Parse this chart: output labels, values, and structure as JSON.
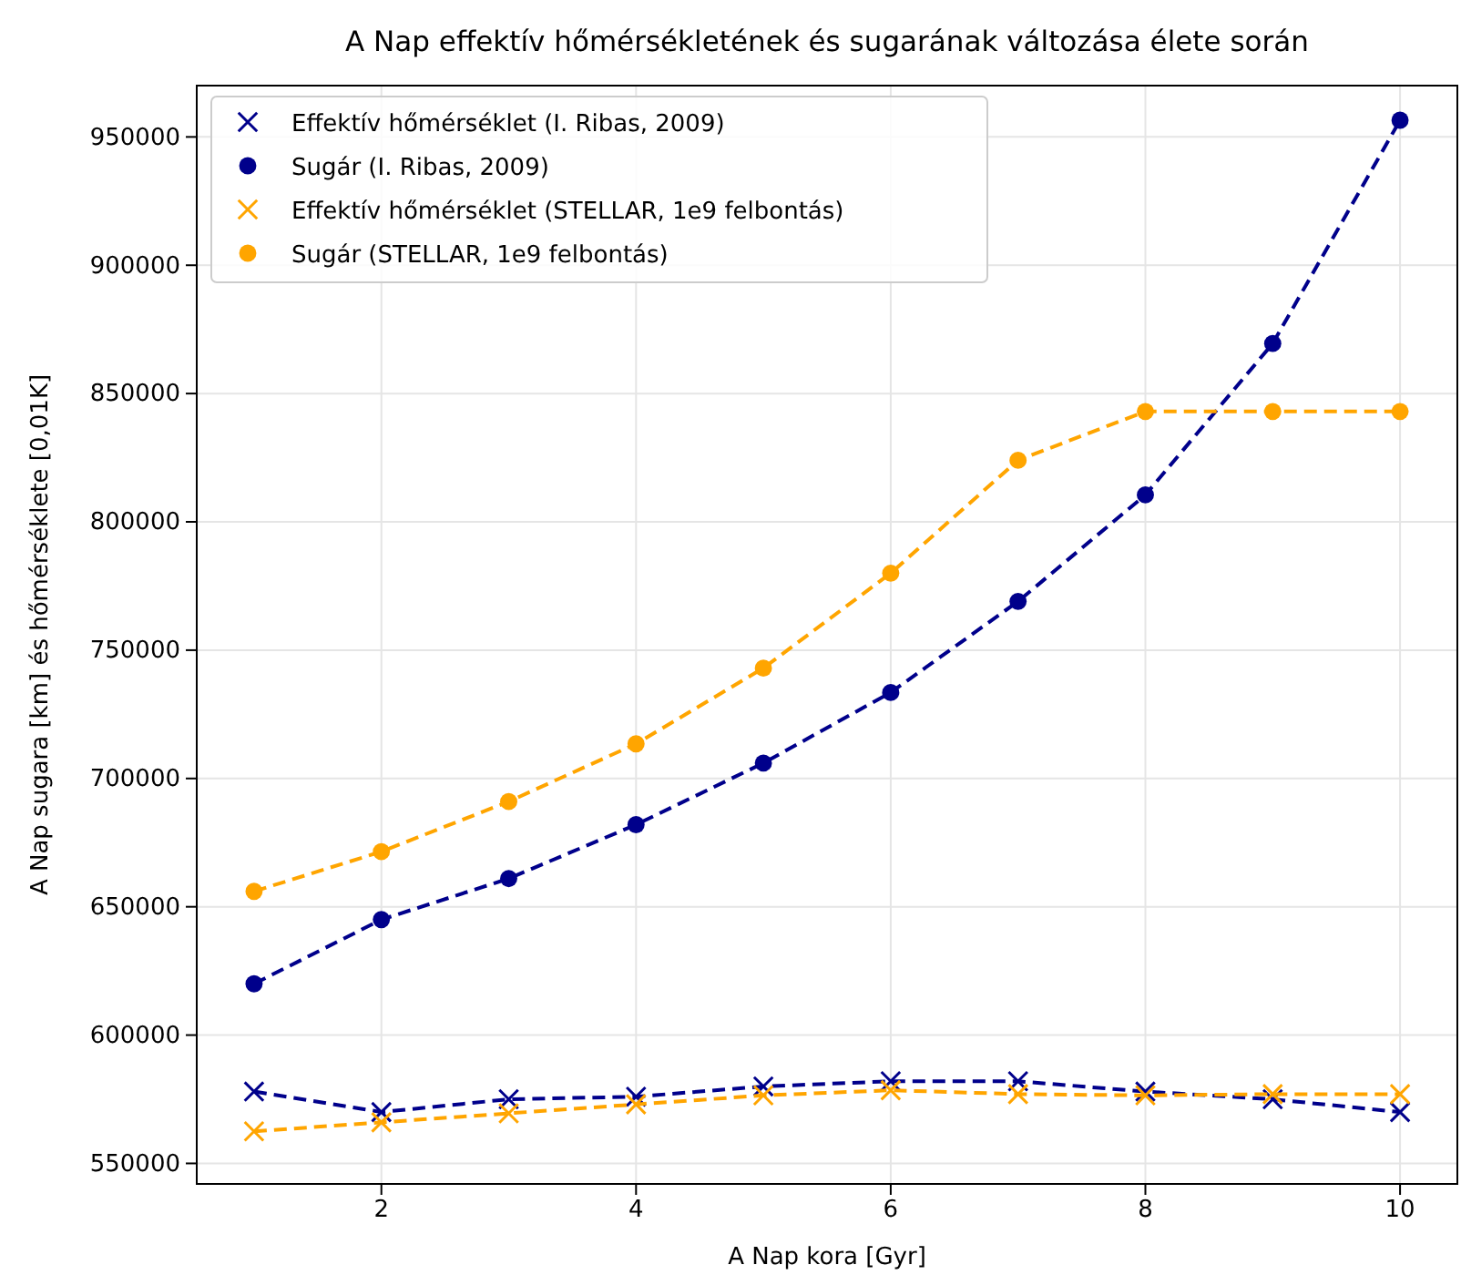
{
  "chart_data": {
    "type": "line",
    "title": "A Nap effektív hőmérsékletének és sugarának változása élete során",
    "xlabel": "A Nap kora [Gyr]",
    "ylabel": "A Nap sugara [km] és hőmérséklete [0,01K]",
    "x": [
      1,
      2,
      3,
      4,
      5,
      6,
      7,
      8,
      9,
      10
    ],
    "series": [
      {
        "name": "Effektív hőmérséklet (I. Ribas, 2009)",
        "color": "#00008b",
        "marker": "cross",
        "values": [
          578000,
          570000,
          575000,
          576000,
          580000,
          582000,
          582000,
          578000,
          575000,
          570000
        ]
      },
      {
        "name": "Sugár (I. Ribas, 2009)",
        "color": "#00008b",
        "marker": "circle",
        "values": [
          620000,
          645000,
          661000,
          682000,
          706000,
          733500,
          769000,
          810500,
          869500,
          956500
        ]
      },
      {
        "name": "Effektív hőmérséklet (STELLAR, 1e9 felbontás)",
        "color": "#ffa500",
        "marker": "cross",
        "values": [
          562500,
          566000,
          569500,
          573000,
          576500,
          578500,
          577000,
          576500,
          577000,
          577000
        ]
      },
      {
        "name": "Sugár (STELLAR, 1e9 felbontás)",
        "color": "#ffa500",
        "marker": "circle",
        "values": [
          656000,
          671500,
          691000,
          713500,
          743000,
          780000,
          824000,
          843000,
          843000,
          843000
        ]
      }
    ],
    "xlim": [
      0.55,
      10.45
    ],
    "ylim": [
      542000,
      970000
    ],
    "xticks": [
      2,
      4,
      6,
      8,
      10
    ],
    "yticks": [
      550000,
      600000,
      650000,
      700000,
      750000,
      800000,
      850000,
      900000,
      950000
    ],
    "grid": true,
    "legend": "top left",
    "line_style": "dashed"
  }
}
